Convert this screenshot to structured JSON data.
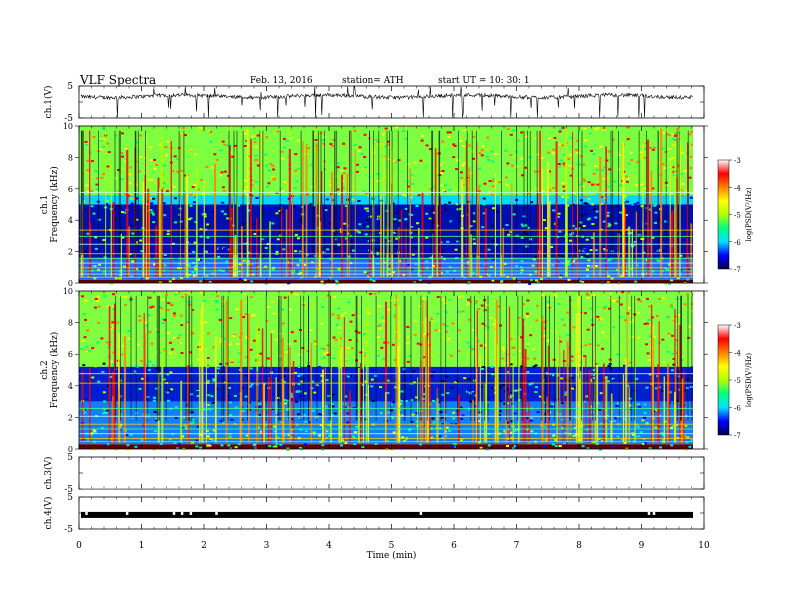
{
  "header": {
    "title": "VLF  Spectra",
    "date": "Feb. 13, 2016",
    "station": "station= ATH",
    "start": "start  UT  =    10: 30: 1"
  },
  "chart_data": [
    {
      "type": "line",
      "ylabel": "ch.1(V)",
      "ylim": [
        -5,
        5
      ],
      "yticks": [
        "5",
        "-5"
      ],
      "xlim": [
        0,
        10
      ],
      "description_series": "voltage trace around +2V with frequent negative spikes"
    },
    {
      "type": "heatmap",
      "ylabel": "ch.1\nFrequency  (kHz)",
      "ylabel_lines": [
        "ch.1",
        "Frequency  (kHz)"
      ],
      "yticks": [
        "0",
        "2",
        "4",
        "6",
        "8",
        "10"
      ],
      "ylim": [
        0,
        10
      ],
      "xlim": [
        0,
        10
      ],
      "colorbar": {
        "label": "log(PSD(V²/Hz)",
        "ticks": [
          "-3",
          "-4",
          "-5",
          "-6",
          "-7"
        ],
        "range": [
          -7,
          -3
        ]
      }
    },
    {
      "type": "heatmap",
      "ylabel_lines": [
        "ch.2",
        "Frequency  (kHz)"
      ],
      "yticks": [
        "0",
        "2",
        "4",
        "6",
        "8",
        "10"
      ],
      "ylim": [
        0,
        10
      ],
      "xlim": [
        0,
        10
      ],
      "colorbar": {
        "label": "log(PSD(V²/Hz)",
        "ticks": [
          "-3",
          "-4",
          "-5",
          "-6",
          "-7"
        ],
        "range": [
          -7,
          -3
        ]
      }
    },
    {
      "type": "line",
      "ylabel": "ch.3(V)",
      "yticks": [
        "5",
        "-5"
      ],
      "ylim": [
        -5,
        5
      ]
    },
    {
      "type": "line",
      "ylabel": "ch.4(V)",
      "yticks": [
        "5",
        "-5"
      ],
      "ylim": [
        -5,
        5
      ],
      "description_series": "flat level near -1V with small gaps"
    }
  ],
  "xaxis": {
    "label": "Time  (min)",
    "ticks": [
      "0",
      "1",
      "2",
      "3",
      "4",
      "5",
      "6",
      "7",
      "8",
      "9",
      "10"
    ]
  },
  "colors": {
    "cmap": [
      "#00004a",
      "#0000ff",
      "#00e0ff",
      "#00ff80",
      "#b0ff00",
      "#ffff00",
      "#ff8000",
      "#ff0000",
      "#ffffff"
    ]
  }
}
